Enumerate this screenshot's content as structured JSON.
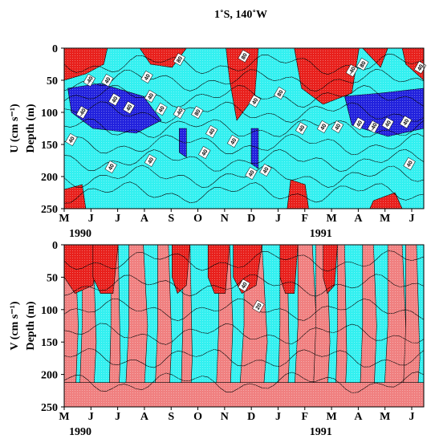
{
  "chart_data": [
    {
      "type": "contour",
      "title": "1˚S, 140˚W",
      "y_label": "U (cm s⁻¹)",
      "y_label2": "Depth (m)",
      "categories": [
        "M",
        "J",
        "J",
        "A",
        "S",
        "O",
        "N",
        "D",
        "J",
        "F",
        "M",
        "A",
        "M",
        "J"
      ],
      "years": [
        "1990",
        "1991"
      ],
      "ylim": [
        0,
        250
      ],
      "yticks": [
        0,
        50,
        100,
        150,
        200,
        250
      ],
      "y_inverted": true,
      "contour_labels": [
        -40,
        40,
        80,
        80,
        80,
        40,
        40,
        40,
        40,
        -40,
        40,
        40,
        -40,
        80,
        40,
        40,
        80,
        40,
        40,
        40,
        40,
        -40,
        40,
        40,
        -40,
        40,
        40,
        40,
        40,
        40,
        40,
        40,
        40
      ],
      "colors": {
        "background": "#33f0f0",
        "positive": "#e8201c",
        "negative": "#2222dd"
      }
    },
    {
      "type": "contour",
      "y_label": "V (cm s⁻¹)",
      "y_label2": "Depth (m)",
      "categories": [
        "M",
        "J",
        "J",
        "A",
        "S",
        "O",
        "N",
        "D",
        "J",
        "F",
        "M",
        "A",
        "M",
        "J"
      ],
      "years": [
        "1990",
        "1991"
      ],
      "ylim": [
        0,
        250
      ],
      "yticks": [
        0,
        50,
        100,
        150,
        200,
        250
      ],
      "y_inverted": true,
      "contour_labels": [
        40,
        20
      ],
      "colors": {
        "background": "#33f0f0",
        "positive": "#f08080",
        "strong": "#e8201c"
      }
    }
  ]
}
